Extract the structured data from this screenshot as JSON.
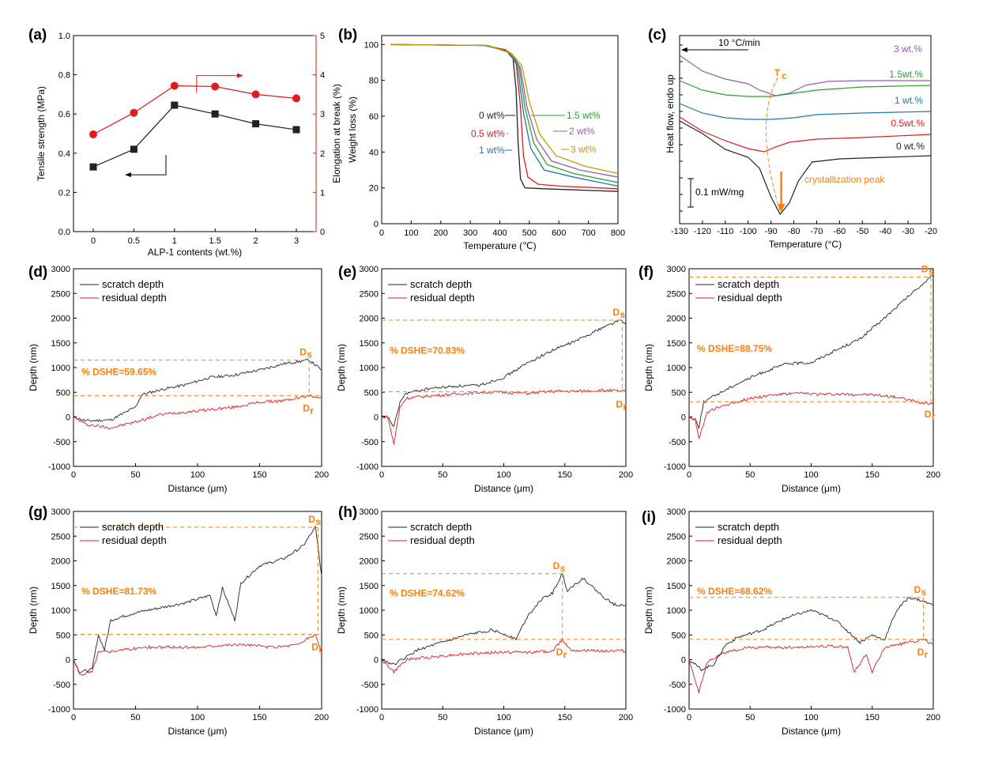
{
  "colors": {
    "black": "#222222",
    "red": "#e31a1c",
    "orange": "#ff7f0e",
    "green": "#2ca02c",
    "blue": "#1f77b4",
    "purple": "#9b59b6",
    "gold": "#c49a00"
  },
  "chart_data": [
    {
      "id": "a",
      "panel_label": "(a)",
      "type": "line",
      "xlabel": "ALP-1 contents (wt.%)",
      "ylabel": "Tensile strength (MPa)",
      "y2label": "Elongation at break (%)",
      "categories": [
        "0",
        "0.5",
        "1",
        "1.5",
        "2",
        "3"
      ],
      "ylim": [
        0,
        1.0
      ],
      "yticks": [
        "0.0",
        "0.2",
        "0.4",
        "0.6",
        "0.8",
        "1.0"
      ],
      "y2lim": [
        0,
        5
      ],
      "y2ticks": [
        "0",
        "1",
        "2",
        "3",
        "4",
        "5"
      ],
      "series": [
        {
          "axis": "left",
          "color": "#222222",
          "marker": "square",
          "values": [
            0.33,
            0.42,
            0.645,
            0.6,
            0.55,
            0.52
          ]
        },
        {
          "axis": "right",
          "color": "#e31a1c",
          "marker": "circle",
          "values": [
            2.48,
            3.03,
            3.72,
            3.7,
            3.5,
            3.4
          ]
        }
      ]
    },
    {
      "id": "b",
      "panel_label": "(b)",
      "type": "line",
      "xlabel": "Temperature (℃)",
      "ylabel": "Weight loss (%)",
      "xlim": [
        0,
        800
      ],
      "ylim": [
        0,
        105
      ],
      "xticks": [
        "0",
        "100",
        "200",
        "300",
        "400",
        "500",
        "600",
        "700",
        "800"
      ],
      "yticks": [
        "0",
        "20",
        "40",
        "60",
        "80",
        "100"
      ],
      "series": [
        {
          "name": "0 wt%",
          "color": "#222222",
          "values": [
            [
              30,
              100
            ],
            [
              350,
              99.5
            ],
            [
              420,
              97
            ],
            [
              445,
              92
            ],
            [
              455,
              75
            ],
            [
              462,
              45
            ],
            [
              470,
              25
            ],
            [
              485,
              20
            ],
            [
              550,
              19.5
            ],
            [
              800,
              18
            ]
          ]
        },
        {
          "name": "0.5 wt%",
          "color": "#e31a1c",
          "values": [
            [
              30,
              100
            ],
            [
              350,
              99.5
            ],
            [
              420,
              97
            ],
            [
              455,
              90
            ],
            [
              470,
              65
            ],
            [
              480,
              38
            ],
            [
              495,
              26
            ],
            [
              530,
              22
            ],
            [
              600,
              21
            ],
            [
              800,
              19.5
            ]
          ]
        },
        {
          "name": "1 wt%",
          "color": "#1f77b4",
          "values": [
            [
              30,
              100
            ],
            [
              350,
              99.5
            ],
            [
              430,
              96
            ],
            [
              460,
              88
            ],
            [
              480,
              62
            ],
            [
              505,
              42
            ],
            [
              550,
              30
            ],
            [
              650,
              26
            ],
            [
              800,
              21
            ]
          ]
        },
        {
          "name": "1.5 wt%",
          "color": "#2ca02c",
          "values": [
            [
              30,
              100
            ],
            [
              350,
              99.5
            ],
            [
              430,
              96
            ],
            [
              465,
              88
            ],
            [
              485,
              65
            ],
            [
              515,
              45
            ],
            [
              560,
              33
            ],
            [
              650,
              28
            ],
            [
              800,
              23
            ]
          ]
        },
        {
          "name": "2 wt%",
          "color": "#9b59b6",
          "values": [
            [
              30,
              100
            ],
            [
              360,
              99.5
            ],
            [
              440,
              95
            ],
            [
              470,
              87
            ],
            [
              492,
              65
            ],
            [
              525,
              47
            ],
            [
              575,
              35
            ],
            [
              670,
              30
            ],
            [
              800,
              26
            ]
          ]
        },
        {
          "name": "3 wt%",
          "color": "#c49a00",
          "values": [
            [
              30,
              100
            ],
            [
              360,
              99.5
            ],
            [
              440,
              95
            ],
            [
              475,
              88
            ],
            [
              500,
              68
            ],
            [
              535,
              50
            ],
            [
              590,
              38
            ],
            [
              690,
              32
            ],
            [
              800,
              28
            ]
          ]
        }
      ]
    },
    {
      "id": "c",
      "panel_label": "(c)",
      "type": "line",
      "xlabel": "Temperature (°C)",
      "ylabel": "Heat flow, endo up",
      "xlim": [
        -130,
        -20
      ],
      "xticks": [
        "-130",
        "-120",
        "-110",
        "-100",
        "-90",
        "-80",
        "-70",
        "-60",
        "-50",
        "-40",
        "-30",
        "-20"
      ],
      "annotations": [
        "10 °C/min",
        "Tc",
        "crystallization peak",
        "0.1 mW/mg"
      ],
      "series": [
        {
          "name": "3 wt.%",
          "color": "#9b59b6"
        },
        {
          "name": "1.5wt.%",
          "color": "#2ca02c"
        },
        {
          "name": "1  wt.%",
          "color": "#1f77b4"
        },
        {
          "name": "0.5wt.%",
          "color": "#e31a1c"
        },
        {
          "name": "0  wt.%",
          "color": "#222222"
        }
      ]
    },
    {
      "id": "d",
      "panel_label": "(d)",
      "type": "line",
      "xlabel": "Distance (μm)",
      "ylabel": "Depth (nm)",
      "xlim": [
        0,
        200
      ],
      "ylim": [
        -1000,
        3000
      ],
      "legend": [
        "scratch depth",
        "residual depth"
      ],
      "dshe": "% DSHE=59.65%",
      "Ds": 1150,
      "Dr": 430,
      "marker_x": 190,
      "scratch": [
        [
          0,
          0
        ],
        [
          10,
          -80
        ],
        [
          30,
          -60
        ],
        [
          50,
          200
        ],
        [
          55,
          450
        ],
        [
          70,
          550
        ],
        [
          90,
          650
        ],
        [
          110,
          800
        ],
        [
          130,
          850
        ],
        [
          150,
          950
        ],
        [
          170,
          1080
        ],
        [
          190,
          1150
        ],
        [
          200,
          950
        ]
      ],
      "residual": [
        [
          0,
          0
        ],
        [
          10,
          -150
        ],
        [
          30,
          -220
        ],
        [
          50,
          -100
        ],
        [
          70,
          50
        ],
        [
          90,
          100
        ],
        [
          110,
          150
        ],
        [
          130,
          200
        ],
        [
          150,
          300
        ],
        [
          170,
          330
        ],
        [
          190,
          430
        ],
        [
          200,
          400
        ]
      ]
    },
    {
      "id": "e",
      "panel_label": "(e)",
      "type": "line",
      "xlabel": "Distance (μm)",
      "ylabel": "Depth (nm)",
      "xlim": [
        0,
        200
      ],
      "ylim": [
        -1000,
        3000
      ],
      "legend": [
        "scratch depth",
        "residual depth"
      ],
      "dshe": "% DSHE=70.83%",
      "Ds": 1960,
      "Dr": 510,
      "marker_x": 197,
      "scratch": [
        [
          0,
          0
        ],
        [
          5,
          0
        ],
        [
          10,
          -200
        ],
        [
          15,
          300
        ],
        [
          20,
          480
        ],
        [
          40,
          580
        ],
        [
          60,
          620
        ],
        [
          80,
          640
        ],
        [
          100,
          800
        ],
        [
          120,
          1100
        ],
        [
          140,
          1350
        ],
        [
          160,
          1550
        ],
        [
          180,
          1800
        ],
        [
          195,
          1960
        ],
        [
          200,
          1880
        ]
      ],
      "residual": [
        [
          0,
          0
        ],
        [
          5,
          0
        ],
        [
          10,
          -550
        ],
        [
          15,
          200
        ],
        [
          20,
          380
        ],
        [
          40,
          430
        ],
        [
          60,
          460
        ],
        [
          80,
          500
        ],
        [
          100,
          500
        ],
        [
          120,
          480
        ],
        [
          140,
          520
        ],
        [
          160,
          520
        ],
        [
          180,
          540
        ],
        [
          200,
          520
        ]
      ]
    },
    {
      "id": "f",
      "panel_label": "(f)",
      "type": "line",
      "xlabel": "Distance (μm)",
      "ylabel": "Depth (nm)",
      "xlim": [
        0,
        200
      ],
      "ylim": [
        -1000,
        3000
      ],
      "legend": [
        "scratch depth",
        "residual depth"
      ],
      "dshe": "% DSHE=88.75%",
      "Ds": 2830,
      "Dr": 310,
      "marker_x": 198,
      "scratch": [
        [
          0,
          0
        ],
        [
          5,
          -50
        ],
        [
          8,
          -200
        ],
        [
          12,
          300
        ],
        [
          20,
          420
        ],
        [
          40,
          680
        ],
        [
          60,
          900
        ],
        [
          80,
          1080
        ],
        [
          100,
          1100
        ],
        [
          120,
          1350
        ],
        [
          140,
          1580
        ],
        [
          160,
          2000
        ],
        [
          180,
          2450
        ],
        [
          198,
          2830
        ],
        [
          200,
          2850
        ]
      ],
      "residual": [
        [
          0,
          0
        ],
        [
          5,
          -50
        ],
        [
          8,
          -450
        ],
        [
          15,
          100
        ],
        [
          30,
          250
        ],
        [
          50,
          380
        ],
        [
          70,
          450
        ],
        [
          90,
          480
        ],
        [
          110,
          460
        ],
        [
          130,
          460
        ],
        [
          150,
          450
        ],
        [
          170,
          400
        ],
        [
          190,
          290
        ],
        [
          200,
          280
        ]
      ]
    },
    {
      "id": "g",
      "panel_label": "(g)",
      "type": "line",
      "xlabel": "Distance (μm)",
      "ylabel": "Depth (nm)",
      "xlim": [
        0,
        200
      ],
      "ylim": [
        -1000,
        3000
      ],
      "legend": [
        "scratch depth",
        "residual depth"
      ],
      "dshe": "% DSHE=81.73%",
      "Ds": 2680,
      "Dr": 510,
      "marker_x": 197,
      "scratch": [
        [
          0,
          0
        ],
        [
          5,
          -250
        ],
        [
          15,
          -200
        ],
        [
          20,
          500
        ],
        [
          25,
          200
        ],
        [
          30,
          800
        ],
        [
          50,
          950
        ],
        [
          70,
          1050
        ],
        [
          90,
          1150
        ],
        [
          110,
          1300
        ],
        [
          115,
          900
        ],
        [
          120,
          1450
        ],
        [
          130,
          800
        ],
        [
          135,
          1550
        ],
        [
          150,
          1900
        ],
        [
          170,
          2050
        ],
        [
          185,
          2300
        ],
        [
          195,
          2680
        ],
        [
          200,
          1700
        ]
      ],
      "residual": [
        [
          0,
          0
        ],
        [
          5,
          -300
        ],
        [
          15,
          -250
        ],
        [
          20,
          150
        ],
        [
          40,
          200
        ],
        [
          60,
          250
        ],
        [
          80,
          250
        ],
        [
          100,
          250
        ],
        [
          120,
          300
        ],
        [
          140,
          300
        ],
        [
          160,
          250
        ],
        [
          180,
          300
        ],
        [
          195,
          510
        ],
        [
          200,
          150
        ]
      ]
    },
    {
      "id": "h",
      "panel_label": "(h)",
      "type": "line",
      "xlabel": "Distance (μm)",
      "ylabel": "Depth (nm)",
      "xlim": [
        0,
        200
      ],
      "ylim": [
        -1000,
        3000
      ],
      "legend": [
        "scratch depth",
        "residual depth"
      ],
      "dshe": "% DSHE=74.62%",
      "Ds": 1740,
      "Dr": 410,
      "marker_x": 148,
      "scratch": [
        [
          0,
          0
        ],
        [
          10,
          -100
        ],
        [
          30,
          200
        ],
        [
          50,
          350
        ],
        [
          70,
          500
        ],
        [
          90,
          600
        ],
        [
          100,
          520
        ],
        [
          110,
          420
        ],
        [
          120,
          900
        ],
        [
          130,
          1200
        ],
        [
          140,
          1350
        ],
        [
          148,
          1740
        ],
        [
          152,
          1400
        ],
        [
          165,
          1650
        ],
        [
          180,
          1300
        ],
        [
          190,
          1120
        ],
        [
          200,
          1100
        ]
      ],
      "residual": [
        [
          0,
          0
        ],
        [
          10,
          -250
        ],
        [
          20,
          0
        ],
        [
          40,
          50
        ],
        [
          60,
          100
        ],
        [
          80,
          130
        ],
        [
          100,
          150
        ],
        [
          120,
          150
        ],
        [
          140,
          170
        ],
        [
          148,
          410
        ],
        [
          155,
          200
        ],
        [
          170,
          180
        ],
        [
          200,
          180
        ]
      ]
    },
    {
      "id": "i",
      "panel_label": "(i)",
      "type": "line",
      "xlabel": "Distance (μm)",
      "ylabel": "Depth (nm)",
      "xlim": [
        0,
        200
      ],
      "ylim": [
        -1000,
        3000
      ],
      "legend": [
        "scratch depth",
        "residual depth"
      ],
      "dshe": "% DSHE=68.62%",
      "Ds": 1260,
      "Dr": 410,
      "marker_x": 192,
      "scratch": [
        [
          0,
          0
        ],
        [
          10,
          -200
        ],
        [
          20,
          -100
        ],
        [
          30,
          300
        ],
        [
          40,
          450
        ],
        [
          60,
          600
        ],
        [
          80,
          850
        ],
        [
          100,
          1000
        ],
        [
          120,
          800
        ],
        [
          140,
          350
        ],
        [
          150,
          500
        ],
        [
          160,
          400
        ],
        [
          170,
          1000
        ],
        [
          180,
          1260
        ],
        [
          190,
          1200
        ],
        [
          200,
          1100
        ]
      ],
      "residual": [
        [
          0,
          0
        ],
        [
          8,
          -650
        ],
        [
          15,
          -50
        ],
        [
          30,
          150
        ],
        [
          50,
          250
        ],
        [
          70,
          250
        ],
        [
          90,
          250
        ],
        [
          110,
          280
        ],
        [
          130,
          250
        ],
        [
          135,
          -250
        ],
        [
          145,
          100
        ],
        [
          150,
          -250
        ],
        [
          160,
          250
        ],
        [
          180,
          350
        ],
        [
          192,
          410
        ],
        [
          200,
          300
        ]
      ]
    }
  ]
}
